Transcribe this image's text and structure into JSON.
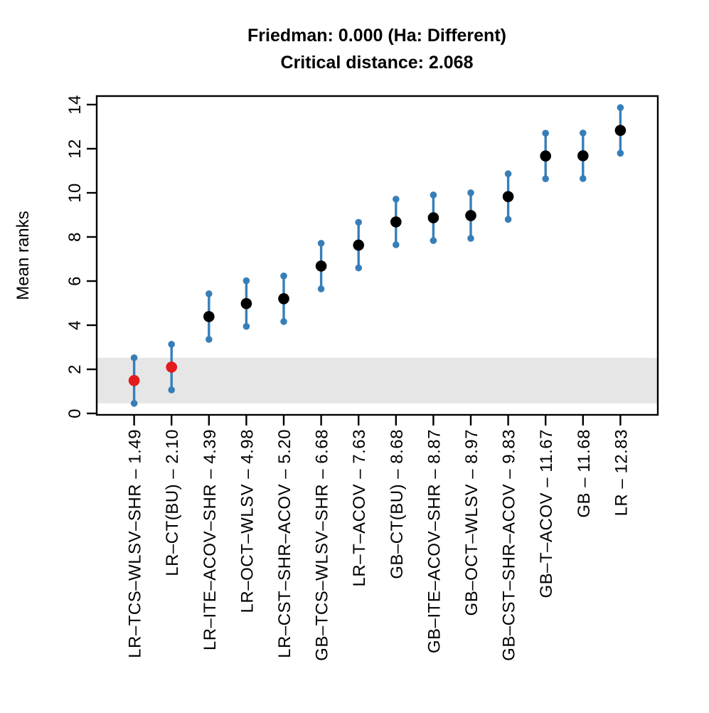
{
  "chart_data": {
    "type": "scatter",
    "title": "Friedman: 0.000 (Ha: Different)",
    "subtitle": "Critical distance: 2.068",
    "ylabel": "Mean ranks",
    "xlabel": "",
    "friedman_pvalue": "0.000",
    "alternative_hypothesis": "Ha: Different",
    "critical_distance": 2.068,
    "ylim": [
      0,
      14
    ],
    "yticks": [
      0,
      2,
      4,
      6,
      8,
      10,
      12,
      14
    ],
    "grid": false,
    "legend_position": "none",
    "categories": [
      "LR–TCS–WLSV–SHR – 1.49",
      "LR–CT(BU) – 2.10",
      "LR–ITE–ACOV–SHR – 4.39",
      "LR–OCT–WLSV – 4.98",
      "LR–CST–SHR–ACOV – 5.20",
      "GB–TCS–WLSV–SHR – 6.68",
      "LR–T–ACOV – 7.63",
      "GB–CT(BU) – 8.68",
      "GB–ITE–ACOV–SHR – 8.87",
      "GB–OCT–WLSV – 8.97",
      "GB–CST–SHR–ACOV – 9.83",
      "GB–T–ACOV – 11.67",
      "GB – 11.68",
      "LR – 12.83"
    ],
    "methods": [
      "LR–TCS–WLSV–SHR",
      "LR–CT(BU)",
      "LR–ITE–ACOV–SHR",
      "LR–OCT–WLSV",
      "LR–CST–SHR–ACOV",
      "GB–TCS–WLSV–SHR",
      "LR–T–ACOV",
      "GB–CT(BU)",
      "GB–ITE–ACOV–SHR",
      "GB–OCT–WLSV",
      "GB–CST–SHR–ACOV",
      "GB–T–ACOV",
      "GB",
      "LR"
    ],
    "values": [
      1.49,
      2.1,
      4.39,
      4.98,
      5.2,
      6.68,
      7.63,
      8.68,
      8.87,
      8.97,
      9.83,
      11.67,
      11.68,
      12.83
    ],
    "interval_half_width": 1.034,
    "best_group_indices": [
      0,
      1
    ],
    "band_range": [
      0.456,
      2.524
    ],
    "colors": {
      "mean_point": "#000000",
      "best_group_point": "#E41A1C",
      "interval": "#377EB8",
      "band": "#E6E6E6",
      "axis": "#000000"
    }
  }
}
